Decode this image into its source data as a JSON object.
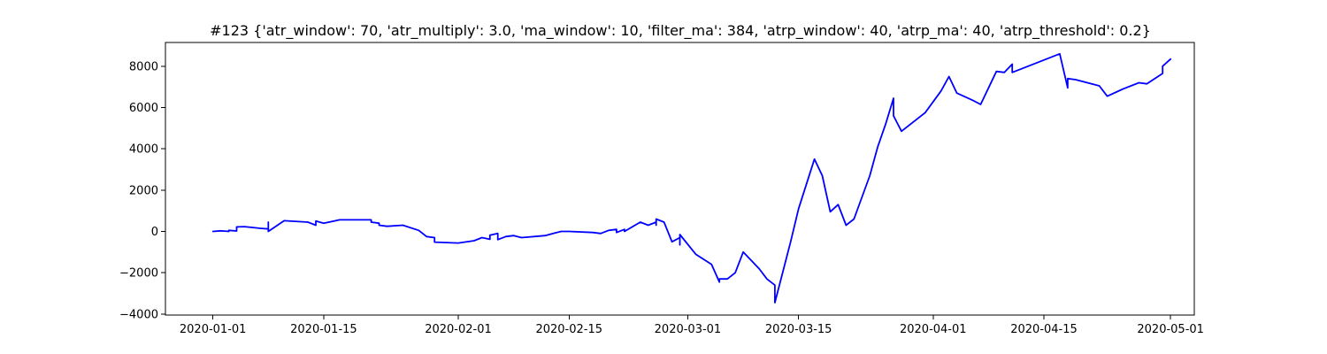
{
  "chart_data": {
    "type": "line",
    "title": "#123 {'atr_window': 70, 'atr_multiply': 3.0, 'ma_window': 10, 'filter_ma': 384, 'atrp_window': 40, 'atrp_ma': 40, 'atrp_threshold': 0.2}",
    "xlabel": "",
    "ylabel": "",
    "xlim": [
      "2019-12-26",
      "2020-05-04"
    ],
    "ylim": [
      -4050,
      9150
    ],
    "grid": false,
    "x_ticks": [
      "2020-01-01",
      "2020-01-15",
      "2020-02-01",
      "2020-02-15",
      "2020-03-01",
      "2020-03-15",
      "2020-04-01",
      "2020-04-15",
      "2020-05-01"
    ],
    "y_ticks": [
      -4000,
      -2000,
      0,
      2000,
      4000,
      6000,
      8000
    ],
    "series": [
      {
        "color": "#0000ff",
        "points": [
          [
            "2020-01-01",
            0
          ],
          [
            "2020-01-02",
            30
          ],
          [
            "2020-01-03",
            0
          ],
          [
            "2020-01-03",
            50
          ],
          [
            "2020-01-04",
            20
          ],
          [
            "2020-01-04",
            220
          ],
          [
            "2020-01-05",
            230
          ],
          [
            "2020-01-07",
            150
          ],
          [
            "2020-01-08",
            120
          ],
          [
            "2020-01-08",
            200
          ],
          [
            "2020-01-08",
            450
          ],
          [
            "2020-01-08",
            0
          ],
          [
            "2020-01-10",
            520
          ],
          [
            "2020-01-13",
            450
          ],
          [
            "2020-01-14",
            300
          ],
          [
            "2020-01-14",
            500
          ],
          [
            "2020-01-15",
            400
          ],
          [
            "2020-01-17",
            560
          ],
          [
            "2020-01-21",
            560
          ],
          [
            "2020-01-21",
            450
          ],
          [
            "2020-01-22",
            400
          ],
          [
            "2020-01-22",
            300
          ],
          [
            "2020-01-23",
            250
          ],
          [
            "2020-01-25",
            300
          ],
          [
            "2020-01-27",
            50
          ],
          [
            "2020-01-28",
            -250
          ],
          [
            "2020-01-29",
            -300
          ],
          [
            "2020-01-29",
            -520
          ],
          [
            "2020-02-01",
            -560
          ],
          [
            "2020-02-03",
            -450
          ],
          [
            "2020-02-04",
            -300
          ],
          [
            "2020-02-05",
            -380
          ],
          [
            "2020-02-05",
            -180
          ],
          [
            "2020-02-06",
            -100
          ],
          [
            "2020-02-06",
            -400
          ],
          [
            "2020-02-07",
            -250
          ],
          [
            "2020-02-08",
            -200
          ],
          [
            "2020-02-09",
            -300
          ],
          [
            "2020-02-12",
            -200
          ],
          [
            "2020-02-13",
            -100
          ],
          [
            "2020-02-14",
            0
          ],
          [
            "2020-02-15",
            0
          ],
          [
            "2020-02-18",
            -50
          ],
          [
            "2020-02-19",
            -100
          ],
          [
            "2020-02-20",
            50
          ],
          [
            "2020-02-21",
            100
          ],
          [
            "2020-02-21",
            -50
          ],
          [
            "2020-02-22",
            100
          ],
          [
            "2020-02-22",
            0
          ],
          [
            "2020-02-24",
            450
          ],
          [
            "2020-02-25",
            300
          ],
          [
            "2020-02-26",
            450
          ],
          [
            "2020-02-26",
            300
          ],
          [
            "2020-02-26",
            600
          ],
          [
            "2020-02-27",
            450
          ],
          [
            "2020-02-28",
            -500
          ],
          [
            "2020-02-29",
            -300
          ],
          [
            "2020-02-29",
            -650
          ],
          [
            "2020-02-29",
            -150
          ],
          [
            "2020-03-02",
            -1100
          ],
          [
            "2020-03-04",
            -1600
          ],
          [
            "2020-03-05",
            -2450
          ],
          [
            "2020-03-05",
            -2300
          ],
          [
            "2020-03-06",
            -2300
          ],
          [
            "2020-03-07",
            -2000
          ],
          [
            "2020-03-08",
            -1000
          ],
          [
            "2020-03-10",
            -1800
          ],
          [
            "2020-03-11",
            -2300
          ],
          [
            "2020-03-12",
            -2600
          ],
          [
            "2020-03-12",
            -3450
          ],
          [
            "2020-03-14",
            -500
          ],
          [
            "2020-03-15",
            1100
          ],
          [
            "2020-03-17",
            3500
          ],
          [
            "2020-03-18",
            2700
          ],
          [
            "2020-03-19",
            950
          ],
          [
            "2020-03-20",
            1300
          ],
          [
            "2020-03-21",
            300
          ],
          [
            "2020-03-22",
            600
          ],
          [
            "2020-03-24",
            2700
          ],
          [
            "2020-03-25",
            4100
          ],
          [
            "2020-03-26",
            5200
          ],
          [
            "2020-03-27",
            6450
          ],
          [
            "2020-03-27",
            5600
          ],
          [
            "2020-03-28",
            4850
          ],
          [
            "2020-03-31",
            5750
          ],
          [
            "2020-04-02",
            6800
          ],
          [
            "2020-04-03",
            7500
          ],
          [
            "2020-04-04",
            6700
          ],
          [
            "2020-04-06",
            6350
          ],
          [
            "2020-04-07",
            6150
          ],
          [
            "2020-04-09",
            7750
          ],
          [
            "2020-04-10",
            7700
          ],
          [
            "2020-04-11",
            8100
          ],
          [
            "2020-04-11",
            7700
          ],
          [
            "2020-04-12",
            7850
          ],
          [
            "2020-04-17",
            8600
          ],
          [
            "2020-04-18",
            6950
          ],
          [
            "2020-04-18",
            7400
          ],
          [
            "2020-04-19",
            7350
          ],
          [
            "2020-04-22",
            7050
          ],
          [
            "2020-04-23",
            6550
          ],
          [
            "2020-04-25",
            6900
          ],
          [
            "2020-04-27",
            7200
          ],
          [
            "2020-04-28",
            7150
          ],
          [
            "2020-04-30",
            7650
          ],
          [
            "2020-04-30",
            8000
          ],
          [
            "2020-05-01",
            8350
          ]
        ]
      }
    ]
  }
}
